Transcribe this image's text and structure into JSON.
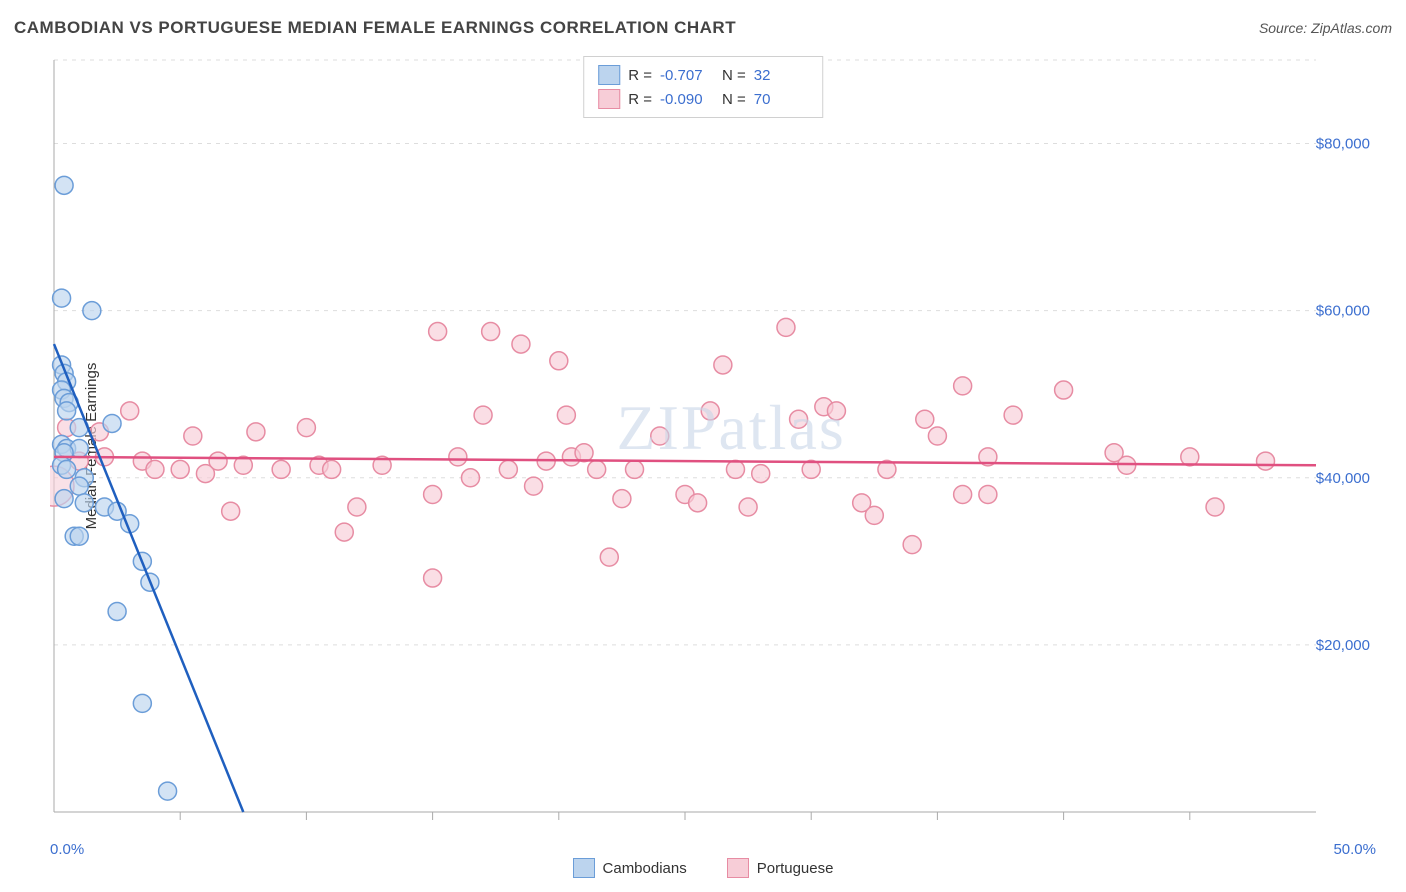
{
  "title": "CAMBODIAN VS PORTUGUESE MEDIAN FEMALE EARNINGS CORRELATION CHART",
  "source": "Source: ZipAtlas.com",
  "watermark": "ZIPatlas",
  "ylabel": "Median Female Earnings",
  "axes": {
    "xlim": [
      0,
      50
    ],
    "ylim": [
      0,
      90000
    ],
    "xticks_minor": [
      5,
      10,
      15,
      20,
      25,
      30,
      35,
      40,
      45
    ],
    "xtick_labels": {
      "start": "0.0%",
      "end": "50.0%"
    },
    "yticks": [
      20000,
      40000,
      60000,
      80000
    ],
    "ytick_labels": [
      "$20,000",
      "$40,000",
      "$60,000",
      "$80,000"
    ],
    "grid_color": "#dddddd",
    "axis_color": "#aaaaaa",
    "xlabel_color": "#3b6ecf",
    "ylabel_color": "#3b6ecf"
  },
  "series": {
    "cambodians": {
      "label": "Cambodians",
      "color_fill": "#bcd4ee",
      "color_stroke": "#6b9dd8",
      "line_color": "#1f5fbf",
      "marker_radius": 9,
      "stats": {
        "R": "-0.707",
        "N": "32"
      },
      "trend": {
        "x1": 0,
        "y1": 56000,
        "x2": 7.5,
        "y2": 0
      },
      "points": [
        [
          0.4,
          75000
        ],
        [
          0.3,
          61500
        ],
        [
          1.5,
          60000
        ],
        [
          0.3,
          53500
        ],
        [
          0.4,
          52500
        ],
        [
          0.5,
          51500
        ],
        [
          0.3,
          50500
        ],
        [
          0.4,
          49500
        ],
        [
          0.6,
          49000
        ],
        [
          0.5,
          48000
        ],
        [
          2.3,
          46500
        ],
        [
          1.0,
          46000
        ],
        [
          0.3,
          44000
        ],
        [
          0.5,
          43500
        ],
        [
          1.0,
          43500
        ],
        [
          0.4,
          43000
        ],
        [
          0.3,
          41500
        ],
        [
          0.5,
          41000
        ],
        [
          1.2,
          40000
        ],
        [
          1.0,
          39000
        ],
        [
          0.4,
          37500
        ],
        [
          1.2,
          37000
        ],
        [
          2.0,
          36500
        ],
        [
          2.5,
          36000
        ],
        [
          3.0,
          34500
        ],
        [
          0.8,
          33000
        ],
        [
          1.0,
          33000
        ],
        [
          3.5,
          30000
        ],
        [
          3.8,
          27500
        ],
        [
          2.5,
          24000
        ],
        [
          3.5,
          13000
        ],
        [
          4.5,
          2500
        ]
      ]
    },
    "portuguese": {
      "label": "Portuguese",
      "color_fill": "#f7cdd7",
      "color_stroke": "#e78ca3",
      "line_color": "#e05080",
      "marker_radius": 9,
      "large_marker": {
        "x": 0,
        "y": 39000,
        "r": 20
      },
      "stats": {
        "R": "-0.090",
        "N": "70"
      },
      "trend": {
        "x1": 0,
        "y1": 42500,
        "x2": 50,
        "y2": 41500
      },
      "points": [
        [
          0.5,
          46000
        ],
        [
          1,
          42000
        ],
        [
          1.8,
          45500
        ],
        [
          2,
          42500
        ],
        [
          3,
          48000
        ],
        [
          3.5,
          42000
        ],
        [
          4,
          41000
        ],
        [
          5,
          41000
        ],
        [
          5.5,
          45000
        ],
        [
          6,
          40500
        ],
        [
          6.5,
          42000
        ],
        [
          7,
          36000
        ],
        [
          7.5,
          41500
        ],
        [
          8,
          45500
        ],
        [
          9,
          41000
        ],
        [
          10,
          46000
        ],
        [
          10.5,
          41500
        ],
        [
          11,
          41000
        ],
        [
          11.5,
          33500
        ],
        [
          12,
          36500
        ],
        [
          13,
          41500
        ],
        [
          15,
          38000
        ],
        [
          15,
          28000
        ],
        [
          15.2,
          57500
        ],
        [
          16,
          42500
        ],
        [
          16.5,
          40000
        ],
        [
          17,
          47500
        ],
        [
          17.3,
          57500
        ],
        [
          18,
          41000
        ],
        [
          18.5,
          56000
        ],
        [
          19,
          39000
        ],
        [
          19.5,
          42000
        ],
        [
          20,
          54000
        ],
        [
          20.3,
          47500
        ],
        [
          20.5,
          42500
        ],
        [
          21,
          43000
        ],
        [
          21.5,
          41000
        ],
        [
          22,
          30500
        ],
        [
          22.5,
          37500
        ],
        [
          23,
          41000
        ],
        [
          24,
          45000
        ],
        [
          25,
          38000
        ],
        [
          25.5,
          37000
        ],
        [
          26,
          48000
        ],
        [
          26.5,
          53500
        ],
        [
          27,
          41000
        ],
        [
          27.5,
          36500
        ],
        [
          28,
          40500
        ],
        [
          29,
          58000
        ],
        [
          29.5,
          47000
        ],
        [
          30,
          41000
        ],
        [
          30.5,
          48500
        ],
        [
          31,
          48000
        ],
        [
          32,
          37000
        ],
        [
          32.5,
          35500
        ],
        [
          33,
          41000
        ],
        [
          34,
          32000
        ],
        [
          34.5,
          47000
        ],
        [
          35,
          45000
        ],
        [
          36,
          38000
        ],
        [
          36,
          51000
        ],
        [
          37,
          38000
        ],
        [
          37,
          42500
        ],
        [
          38,
          47500
        ],
        [
          40,
          50500
        ],
        [
          42,
          43000
        ],
        [
          42.5,
          41500
        ],
        [
          45,
          42500
        ],
        [
          46,
          36500
        ],
        [
          48,
          42000
        ]
      ]
    }
  },
  "legend_stat_labels": {
    "R": "R =",
    "N": "N ="
  }
}
